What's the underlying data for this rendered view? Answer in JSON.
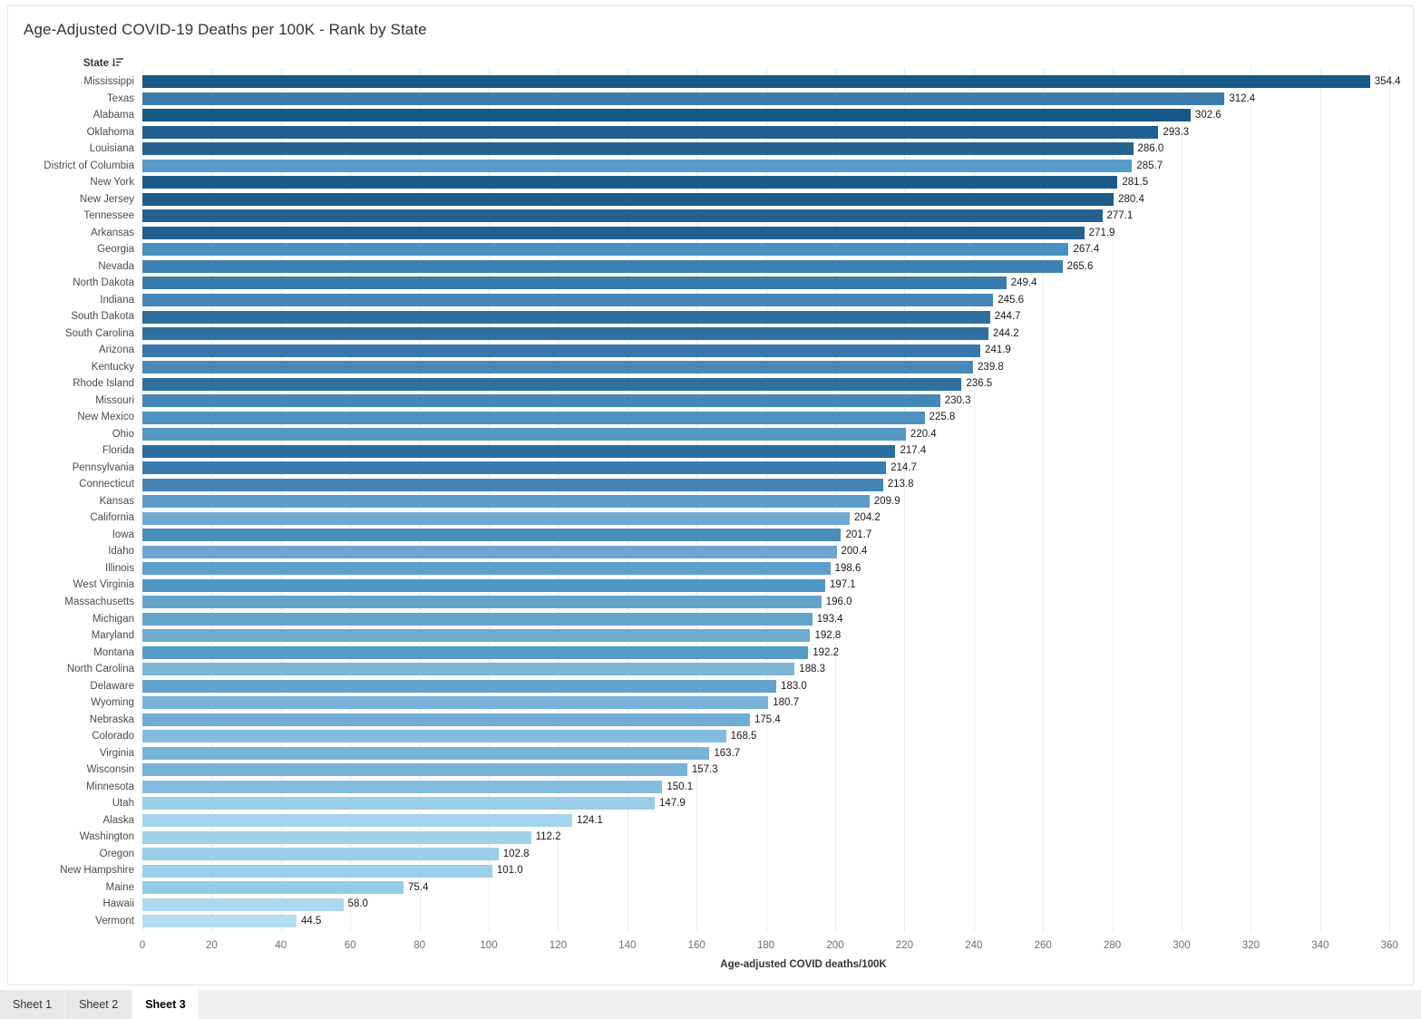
{
  "title": "Age-Adjusted COVID-19 Deaths per 100K - Rank by State",
  "yaxis_header": {
    "label": "State",
    "sort_icon": "sort-descending-icon"
  },
  "chart_data": {
    "type": "bar",
    "orientation": "horizontal",
    "title": "Age-Adjusted COVID-19 Deaths per 100K - Rank by State",
    "xlabel": "Age-adjusted COVID deaths/100K",
    "ylabel": "State",
    "xlim": [
      0,
      360
    ],
    "grid": true,
    "x_ticks": [
      0,
      20,
      40,
      60,
      80,
      100,
      120,
      140,
      160,
      180,
      200,
      220,
      240,
      260,
      280,
      300,
      320,
      340,
      360
    ],
    "categories": [
      "Mississippi",
      "Texas",
      "Alabama",
      "Oklahoma",
      "Louisiana",
      "District of Columbia",
      "New York",
      "New Jersey",
      "Tennessee",
      "Arkansas",
      "Georgia",
      "Nevada",
      "North Dakota",
      "Indiana",
      "South Dakota",
      "South Carolina",
      "Arizona",
      "Kentucky",
      "Rhode Island",
      "Missouri",
      "New Mexico",
      "Ohio",
      "Florida",
      "Pennsylvania",
      "Connecticut",
      "Kansas",
      "California",
      "Iowa",
      "Idaho",
      "Illinois",
      "West Virginia",
      "Massachusetts",
      "Michigan",
      "Maryland",
      "Montana",
      "North Carolina",
      "Delaware",
      "Wyoming",
      "Nebraska",
      "Colorado",
      "Virginia",
      "Wisconsin",
      "Minnesota",
      "Utah",
      "Alaska",
      "Washington",
      "Oregon",
      "New Hampshire",
      "Maine",
      "Hawaii",
      "Vermont"
    ],
    "values": [
      354.4,
      312.4,
      302.6,
      293.3,
      286.0,
      285.7,
      281.5,
      280.4,
      277.1,
      271.9,
      267.4,
      265.6,
      249.4,
      245.6,
      244.7,
      244.2,
      241.9,
      239.8,
      236.5,
      230.3,
      225.8,
      220.4,
      217.4,
      214.7,
      213.8,
      209.9,
      204.2,
      201.7,
      200.4,
      198.6,
      197.1,
      196.0,
      193.4,
      192.8,
      192.2,
      188.3,
      183.0,
      180.7,
      175.4,
      168.5,
      163.7,
      157.3,
      150.1,
      147.9,
      124.1,
      112.2,
      102.8,
      101.0,
      75.4,
      58.0,
      44.5
    ],
    "bar_colors": [
      "#175987",
      "#3d7cab",
      "#165886",
      "#21608e",
      "#26648f",
      "#569cc9",
      "#1a5a88",
      "#1d5d8b",
      "#24618f",
      "#22608e",
      "#4a8fbf",
      "#3d7fb0",
      "#3a7bab",
      "#4687b7",
      "#2d6f9e",
      "#30719f",
      "#3878a8",
      "#4889b8",
      "#2d6f9e",
      "#4187b7",
      "#4d92c0",
      "#5498c4",
      "#2e6d9e",
      "#3a7cae",
      "#4285b6",
      "#5b9cc8",
      "#6fa8d2",
      "#4a8cba",
      "#6ca6d0",
      "#5b9fca",
      "#4f95c3",
      "#63a4cc",
      "#63a4cc",
      "#6dabd0",
      "#579cc8",
      "#7cb5d8",
      "#5fa3cc",
      "#79b4d8",
      "#70acd2",
      "#84bcdd",
      "#7ab4d8",
      "#77b2d6",
      "#85bdde",
      "#97cde7",
      "#a5d5ec",
      "#a0d2ea",
      "#98cee8",
      "#9ad0e9",
      "#92cce6",
      "#abd8ee",
      "#b5ddf2"
    ],
    "value_label_decimals": 1,
    "legend": "none"
  },
  "tabs": [
    {
      "label": "Sheet 1",
      "active": false
    },
    {
      "label": "Sheet 2",
      "active": false
    },
    {
      "label": "Sheet 3",
      "active": true
    }
  ],
  "colors": {
    "gridline": "#ececec",
    "tab_bar_bg": "#f0f0f0",
    "inactive_tab_bg": "#e8e8e8",
    "active_tab_bg": "#ffffff",
    "title_text": "#333333",
    "state_label_text": "#4b4b4b",
    "value_label_text": "#191919",
    "tick_label_text": "#6e6e6e"
  }
}
